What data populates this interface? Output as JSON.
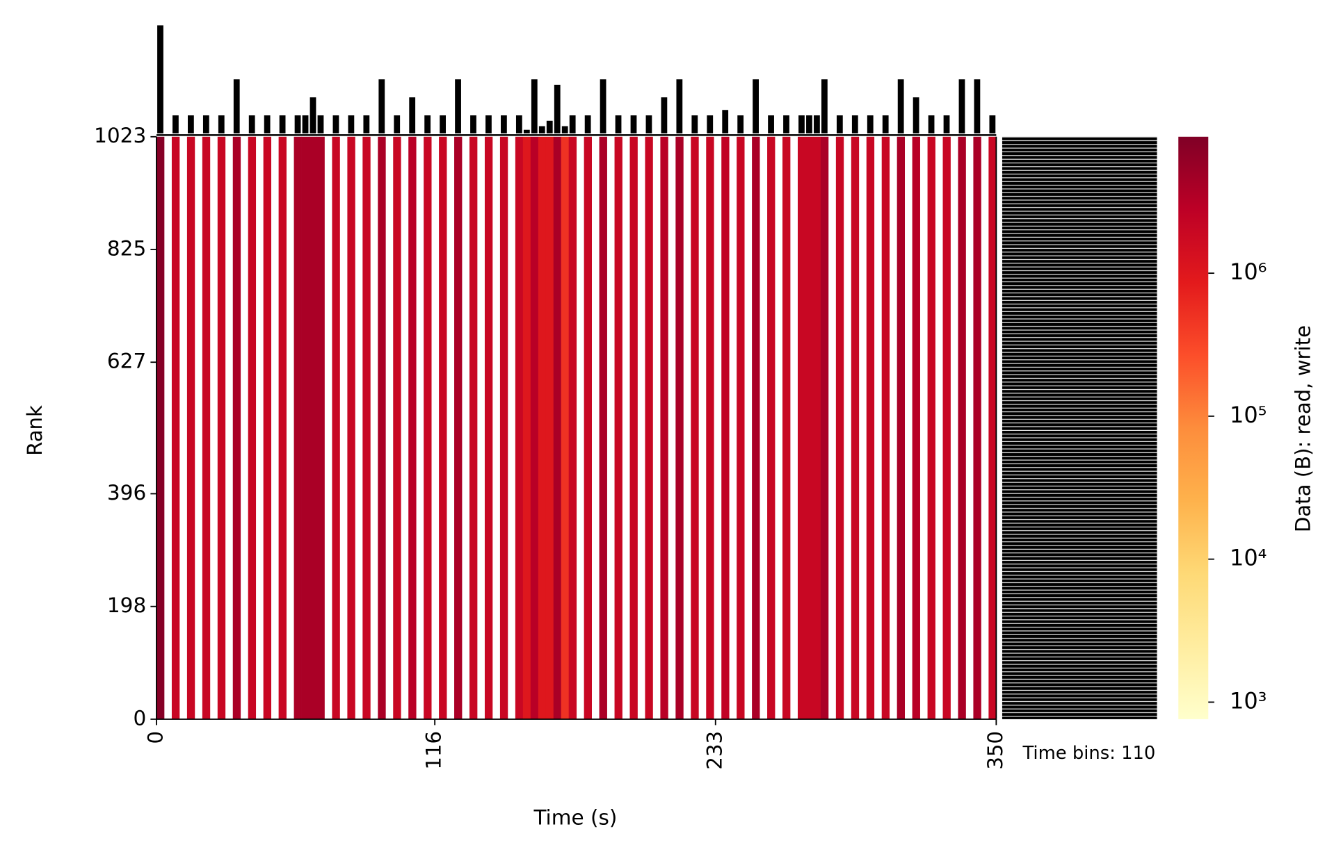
{
  "chart_data": {
    "type": "heatmap",
    "x_label": "Time (s)",
    "y_label": "Rank",
    "xlim": [
      0,
      350
    ],
    "xticks": [
      0,
      116,
      233,
      350
    ],
    "ylim": [
      0,
      1023
    ],
    "yticks": [
      0,
      198,
      396,
      627,
      825,
      1023
    ],
    "annotation": "Time bins: 110",
    "values": [
      8000000,
      null,
      2000000,
      null,
      2000000,
      null,
      2000000,
      null,
      2000000,
      null,
      4000000,
      null,
      2000000,
      null,
      2000000,
      null,
      2000000,
      null,
      4000000,
      4000000,
      4000000,
      4000000,
      null,
      2000000,
      null,
      2000000,
      null,
      2000000,
      null,
      4000000,
      null,
      2000000,
      null,
      3000000,
      null,
      2000000,
      null,
      2000000,
      null,
      4000000,
      null,
      2000000,
      null,
      2000000,
      null,
      2000000,
      null,
      2000000,
      1000000,
      3000000,
      1000000,
      1000000,
      4000000,
      500000,
      2000000,
      null,
      2000000,
      null,
      4000000,
      null,
      2000000,
      null,
      2000000,
      null,
      2000000,
      null,
      3000000,
      null,
      4000000,
      null,
      2000000,
      null,
      2000000,
      null,
      2500000,
      null,
      2000000,
      null,
      4000000,
      null,
      2000000,
      null,
      2000000,
      null,
      2000000,
      2000000,
      2000000,
      4000000,
      null,
      2000000,
      null,
      2000000,
      null,
      2000000,
      null,
      2000000,
      null,
      4000000,
      null,
      3000000,
      null,
      2000000,
      null,
      2000000,
      null,
      4000000,
      null,
      4000000,
      null,
      2000000
    ],
    "bar_values": [
      6,
      null,
      1,
      null,
      1,
      null,
      1,
      null,
      1,
      null,
      3,
      null,
      1,
      null,
      1,
      null,
      1,
      null,
      1,
      1,
      2,
      1,
      null,
      1,
      null,
      1,
      null,
      1,
      null,
      3,
      null,
      1,
      null,
      2,
      null,
      1,
      null,
      1,
      null,
      3,
      null,
      1,
      null,
      1,
      null,
      1,
      null,
      1,
      0.2,
      3,
      0.4,
      0.7,
      2.7,
      0.4,
      1,
      null,
      1,
      null,
      3,
      null,
      1,
      null,
      1,
      null,
      1,
      null,
      2,
      null,
      3,
      null,
      1,
      null,
      1,
      null,
      1.3,
      null,
      1,
      null,
      3,
      null,
      1,
      null,
      1,
      null,
      1,
      1,
      1,
      3,
      null,
      1,
      null,
      1,
      null,
      1,
      null,
      1,
      null,
      3,
      null,
      2,
      null,
      1,
      null,
      1,
      null,
      3,
      null,
      3,
      null,
      1
    ],
    "bar_color": "#000000",
    "colorbar": {
      "label": "Data (B): read, write",
      "scale": "log",
      "lim": [
        760,
        9000000
      ],
      "ticks": [
        {
          "value": 1000,
          "label": "10³"
        },
        {
          "value": 10000,
          "label": "10⁴"
        },
        {
          "value": 100000,
          "label": "10⁵"
        },
        {
          "value": 1000000,
          "label": "10⁶"
        }
      ],
      "colors": [
        "#ffffcc",
        "#ffeda0",
        "#fed976",
        "#feb24c",
        "#fd8d3c",
        "#fc4e2a",
        "#e31a1c",
        "#bd0026",
        "#800026"
      ]
    }
  }
}
